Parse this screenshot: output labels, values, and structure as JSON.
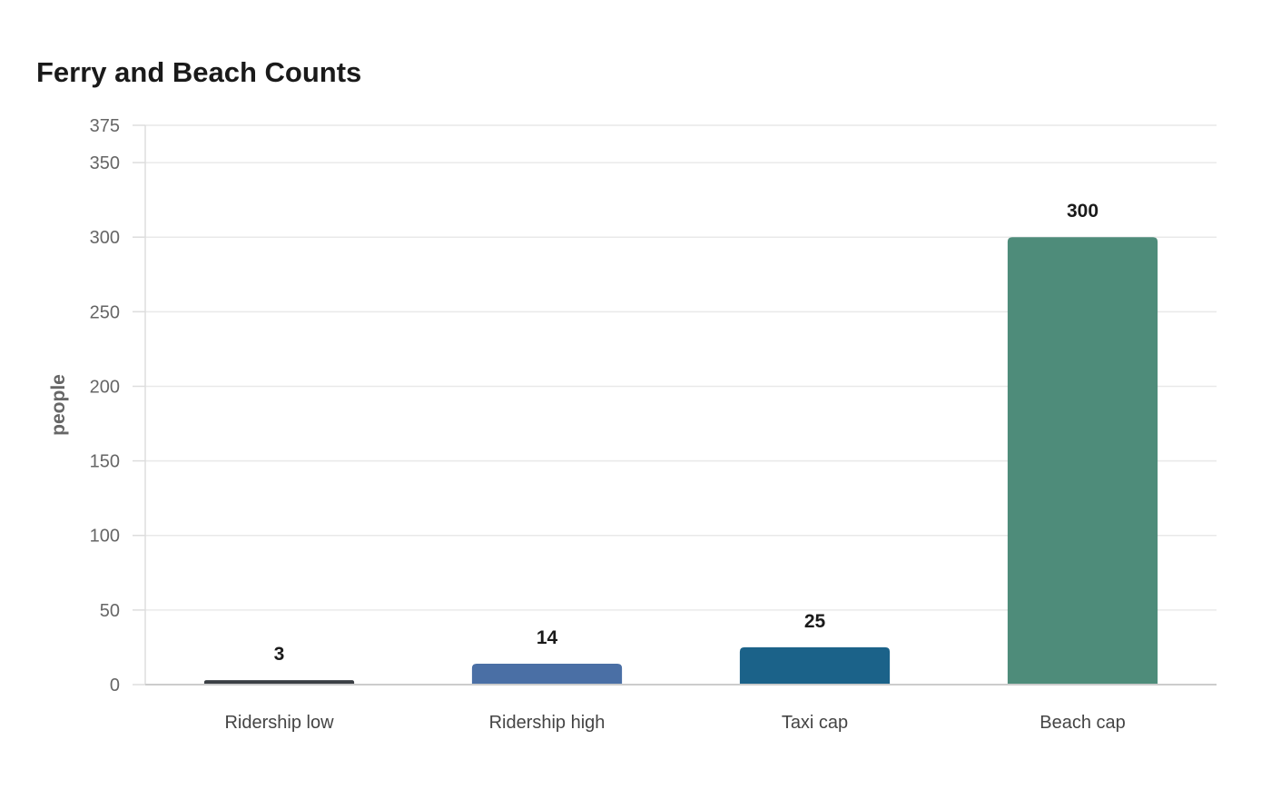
{
  "chart_data": {
    "type": "bar",
    "title": "Ferry and Beach Counts",
    "xlabel": "",
    "ylabel": "people",
    "categories": [
      "Ridership low",
      "Ridership high",
      "Taxi cap",
      "Beach cap"
    ],
    "values": [
      3,
      14,
      25,
      300
    ],
    "colors": [
      "#3a3f44",
      "#4a6fa5",
      "#1b6289",
      "#4e8c7a"
    ],
    "ylim": [
      0,
      375
    ],
    "yticks": [
      0,
      50,
      100,
      150,
      200,
      250,
      300,
      350,
      375
    ],
    "grid": true,
    "legend": "none"
  }
}
